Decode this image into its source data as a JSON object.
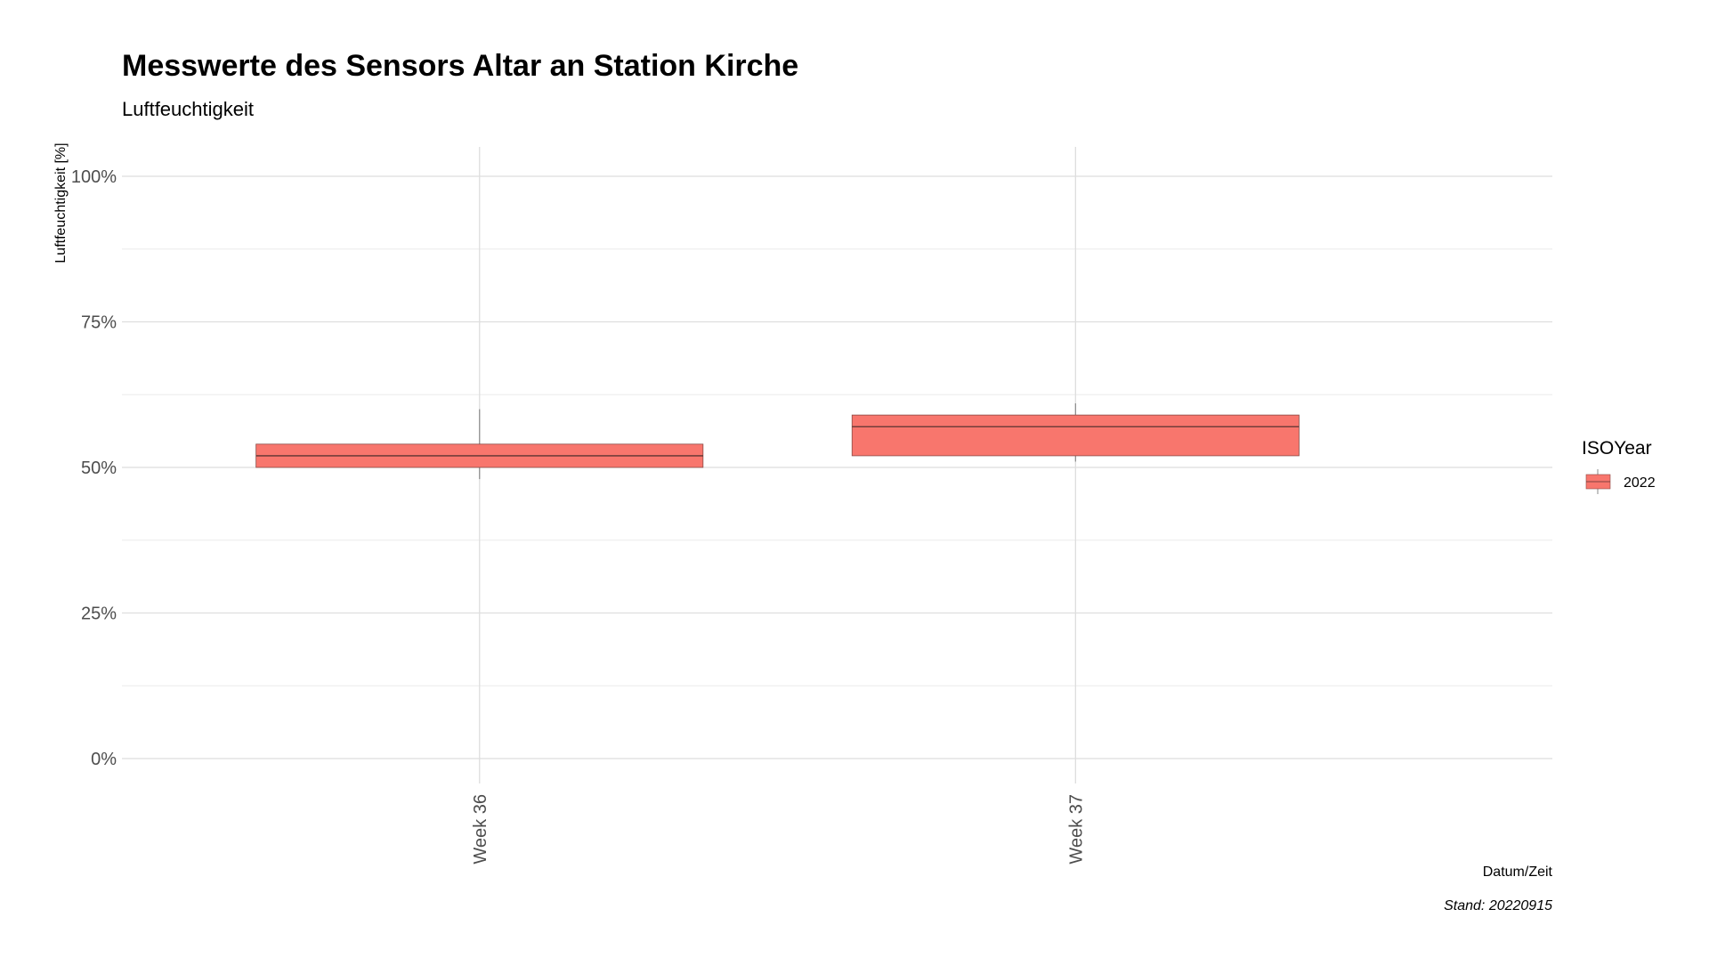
{
  "chart_data": {
    "type": "boxplot",
    "title": "Messwerte des Sensors Altar an Station Kirche",
    "subtitle": "Luftfeuchtigkeit",
    "xlabel": "Datum/Zeit",
    "ylabel": "Luftfeuchtigkeit [%]",
    "caption": "Stand: 20220915",
    "categories": [
      "Week 36",
      "Week 37"
    ],
    "ylim": [
      0,
      100
    ],
    "y_ticks": [
      0,
      25,
      50,
      75,
      100
    ],
    "y_tick_labels": [
      "0%",
      "25%",
      "50%",
      "75%",
      "100%"
    ],
    "grid": true,
    "legend": {
      "title": "ISOYear",
      "placement": "right",
      "entries": [
        {
          "label": "2022",
          "color": "#F8766D"
        }
      ]
    },
    "series": [
      {
        "name": "2022",
        "color": "#F8766D",
        "boxes": [
          {
            "category": "Week 36",
            "min": 48,
            "q1": 50,
            "median": 52,
            "q3": 54,
            "max": 60
          },
          {
            "category": "Week 37",
            "min": 51,
            "q1": 52,
            "median": 57,
            "q3": 59,
            "max": 61
          }
        ]
      }
    ]
  }
}
